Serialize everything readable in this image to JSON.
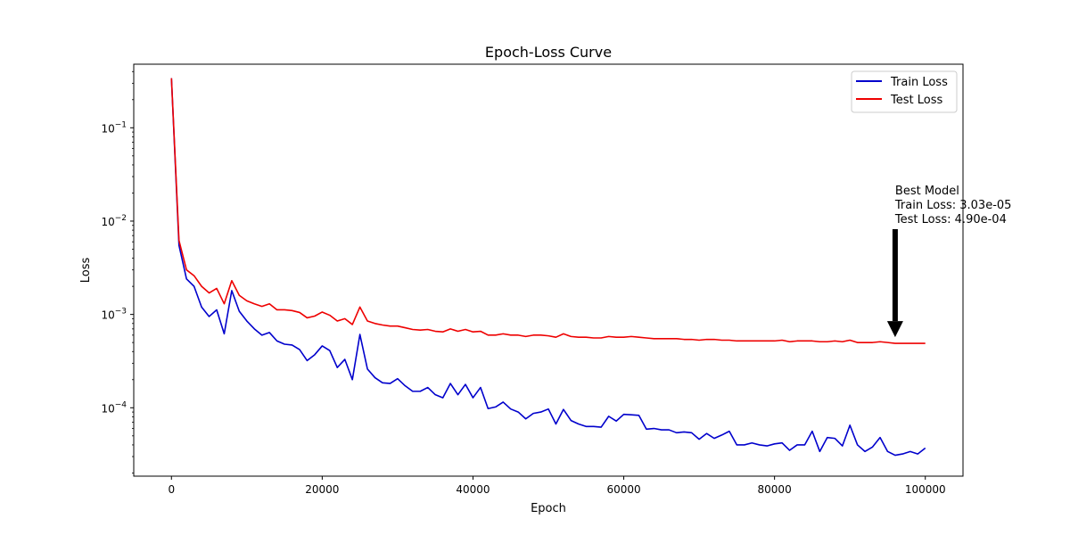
{
  "chart_data": {
    "type": "line",
    "title": "Epoch-Loss Curve",
    "xlabel": "Epoch",
    "ylabel": "Loss",
    "yscale": "log",
    "xlim": [
      -5000,
      105000
    ],
    "ylim": [
      1.85e-05,
      0.48
    ],
    "grid": false,
    "legend_position": "top-right",
    "x_ticks": [
      0,
      20000,
      40000,
      60000,
      80000,
      100000
    ],
    "x_tick_labels": [
      "0",
      "20000",
      "40000",
      "60000",
      "80000",
      "100000"
    ],
    "y_ticks": [
      0.0001,
      0.001,
      0.01,
      0.1
    ],
    "y_tick_labels": [
      {
        "base": "10",
        "exp": "−4"
      },
      {
        "base": "10",
        "exp": "−3"
      },
      {
        "base": "10",
        "exp": "−2"
      },
      {
        "base": "10",
        "exp": "−1"
      }
    ],
    "x": [
      0,
      1000,
      2000,
      3000,
      4000,
      5000,
      6000,
      7000,
      8000,
      9000,
      10000,
      11000,
      12000,
      13000,
      14000,
      15000,
      16000,
      17000,
      18000,
      19000,
      20000,
      21000,
      22000,
      23000,
      24000,
      25000,
      26000,
      27000,
      28000,
      29000,
      30000,
      31000,
      32000,
      33000,
      34000,
      35000,
      36000,
      37000,
      38000,
      39000,
      40000,
      41000,
      42000,
      43000,
      44000,
      45000,
      46000,
      47000,
      48000,
      49000,
      50000,
      51000,
      52000,
      53000,
      54000,
      55000,
      56000,
      57000,
      58000,
      59000,
      60000,
      61000,
      62000,
      63000,
      64000,
      65000,
      66000,
      67000,
      68000,
      69000,
      70000,
      71000,
      72000,
      73000,
      74000,
      75000,
      76000,
      77000,
      78000,
      79000,
      80000,
      81000,
      82000,
      83000,
      84000,
      85000,
      86000,
      87000,
      88000,
      89000,
      90000,
      91000,
      92000,
      93000,
      94000,
      95000,
      96000,
      97000,
      98000,
      99000,
      100000
    ],
    "series": [
      {
        "name": "Train Loss",
        "color": "#0000cc",
        "values": [
          0.34,
          0.0055,
          0.0024,
          0.002,
          0.0012,
          0.00095,
          0.00112,
          0.00062,
          0.0018,
          0.00108,
          0.00085,
          0.0007,
          0.0006,
          0.00064,
          0.00052,
          0.00048,
          0.00047,
          0.00042,
          0.00032,
          0.00037,
          0.00046,
          0.00041,
          0.00027,
          0.00033,
          0.0002,
          0.00061,
          0.00026,
          0.00021,
          0.000185,
          0.000182,
          0.000205,
          0.000172,
          0.00015,
          0.00015,
          0.000165,
          0.000138,
          0.000128,
          0.000182,
          0.000138,
          0.000178,
          0.000128,
          0.000165,
          9.8e-05,
          0.000102,
          0.000115,
          9.7e-05,
          9e-05,
          7.6e-05,
          8.7e-05,
          9e-05,
          9.7e-05,
          6.7e-05,
          9.6e-05,
          7.3e-05,
          6.7e-05,
          6.3e-05,
          6.3e-05,
          6.2e-05,
          8.1e-05,
          7.2e-05,
          8.5e-05,
          8.4e-05,
          8.3e-05,
          5.9e-05,
          6e-05,
          5.8e-05,
          5.8e-05,
          5.4e-05,
          5.5e-05,
          5.4e-05,
          4.6e-05,
          5.3e-05,
          4.7e-05,
          5.1e-05,
          5.6e-05,
          4e-05,
          4e-05,
          4.2e-05,
          4e-05,
          3.9e-05,
          4.1e-05,
          4.2e-05,
          3.5e-05,
          4e-05,
          4e-05,
          5.6e-05,
          3.4e-05,
          4.8e-05,
          4.7e-05,
          3.9e-05,
          6.5e-05,
          4e-05,
          3.4e-05,
          3.8e-05,
          4.8e-05,
          3.4e-05,
          3.1e-05,
          3.2e-05,
          3.4e-05,
          3.2e-05,
          3.7e-05
        ]
      },
      {
        "name": "Test Loss",
        "color": "#ee0000",
        "values": [
          0.34,
          0.0062,
          0.003,
          0.0026,
          0.002,
          0.0017,
          0.0019,
          0.0013,
          0.0023,
          0.0016,
          0.0014,
          0.0013,
          0.00122,
          0.0013,
          0.00112,
          0.00112,
          0.0011,
          0.00105,
          0.00092,
          0.00096,
          0.00106,
          0.00098,
          0.00085,
          0.0009,
          0.00078,
          0.0012,
          0.00085,
          0.0008,
          0.00077,
          0.00075,
          0.00075,
          0.00072,
          0.00069,
          0.00068,
          0.00069,
          0.00066,
          0.00065,
          0.0007,
          0.00066,
          0.00069,
          0.00065,
          0.00066,
          0.0006,
          0.0006,
          0.00062,
          0.0006,
          0.0006,
          0.00058,
          0.0006,
          0.0006,
          0.00059,
          0.00057,
          0.00062,
          0.00058,
          0.00057,
          0.00057,
          0.00056,
          0.00056,
          0.00058,
          0.00057,
          0.00057,
          0.00058,
          0.00057,
          0.00056,
          0.00055,
          0.00055,
          0.00055,
          0.00055,
          0.00054,
          0.00054,
          0.00053,
          0.00054,
          0.00054,
          0.00053,
          0.00053,
          0.00052,
          0.00052,
          0.00052,
          0.00052,
          0.00052,
          0.00052,
          0.00053,
          0.00051,
          0.00052,
          0.00052,
          0.00052,
          0.00051,
          0.00051,
          0.00052,
          0.00051,
          0.00053,
          0.0005,
          0.0005,
          0.0005,
          0.00051,
          0.0005,
          0.00049,
          0.00049,
          0.00049,
          0.00049,
          0.00049
        ]
      }
    ],
    "annotation": {
      "lines": [
        "Best Model",
        "Train Loss: 3.03e-05",
        "Test Loss: 4.90e-04"
      ],
      "arrow_from": [
        96000,
        0.0082
      ],
      "arrow_to": [
        96000,
        0.00057
      ]
    }
  }
}
